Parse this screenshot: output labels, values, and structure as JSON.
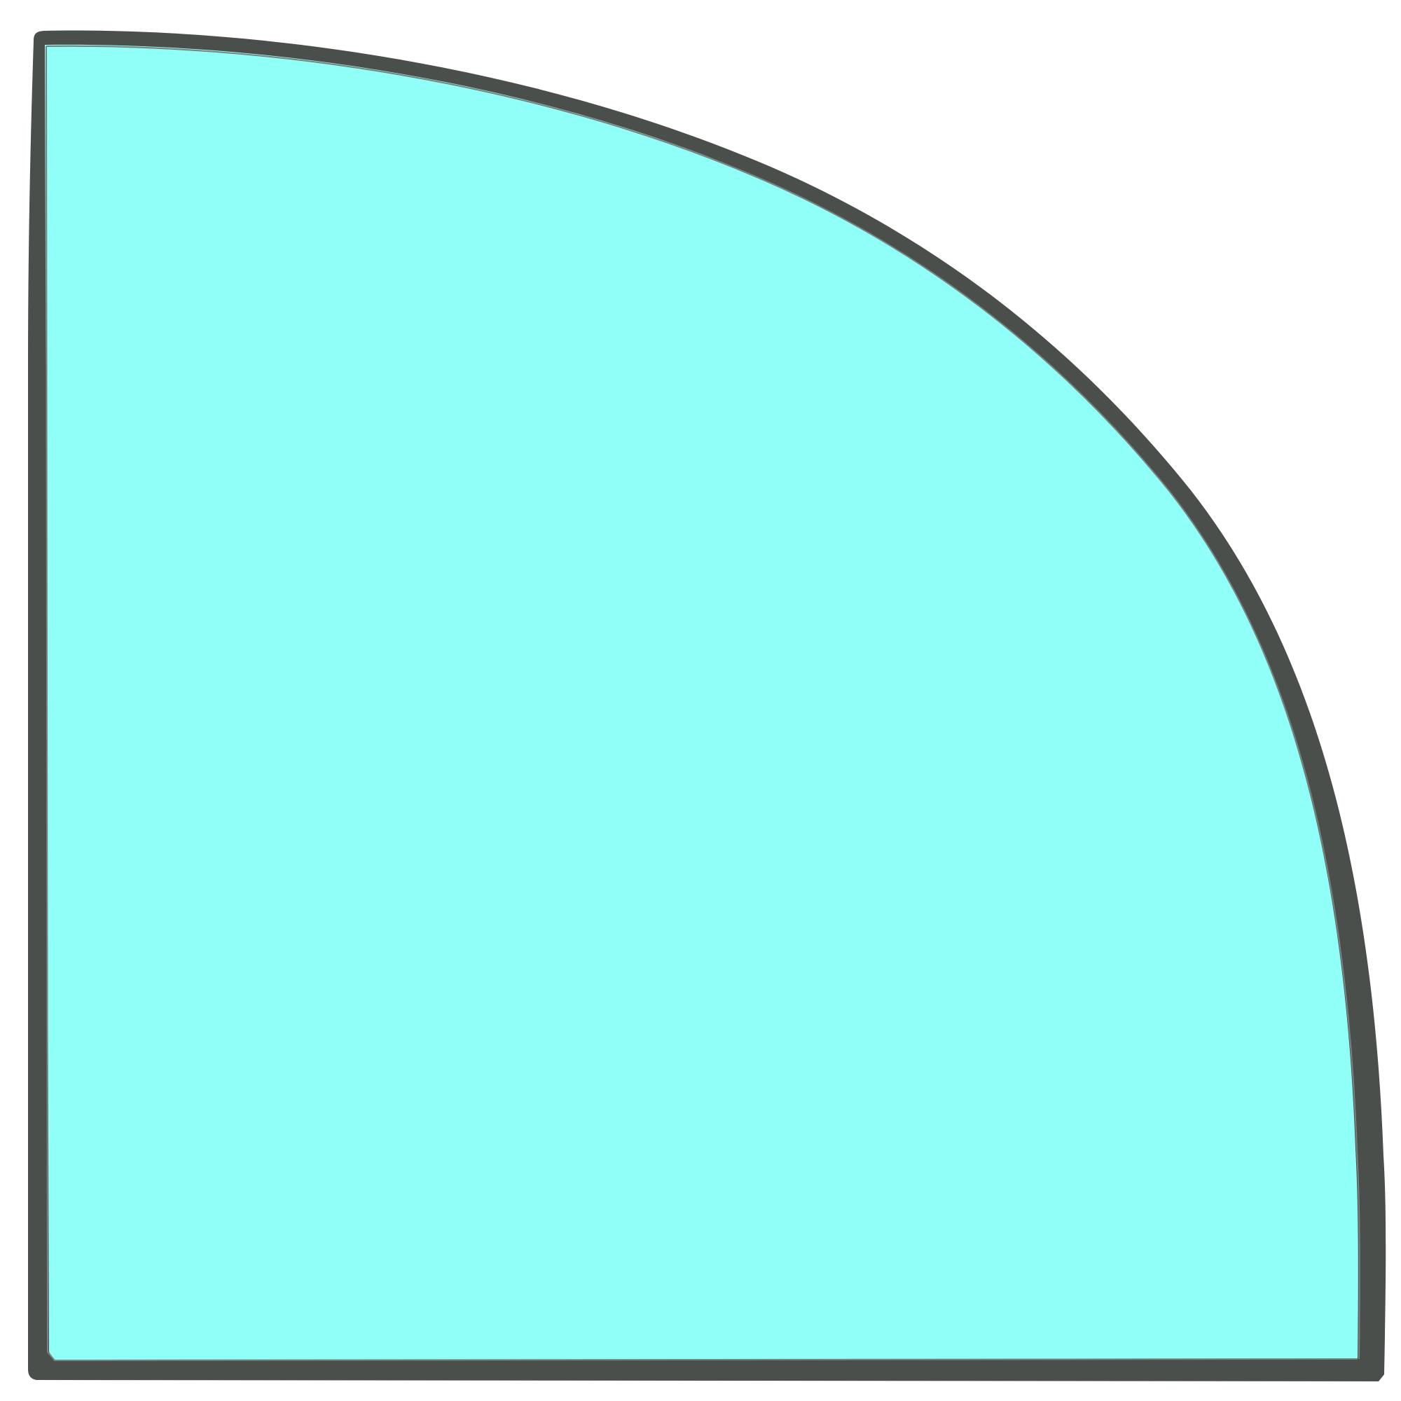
{
  "image": {
    "subject": "quarter-circle-panel",
    "colors": {
      "background": "#ffffff",
      "fill": "#8ffff8",
      "frame": "#4a4f4c",
      "frame_highlight": "#6b706d",
      "inner_line": "#7a807d"
    }
  }
}
